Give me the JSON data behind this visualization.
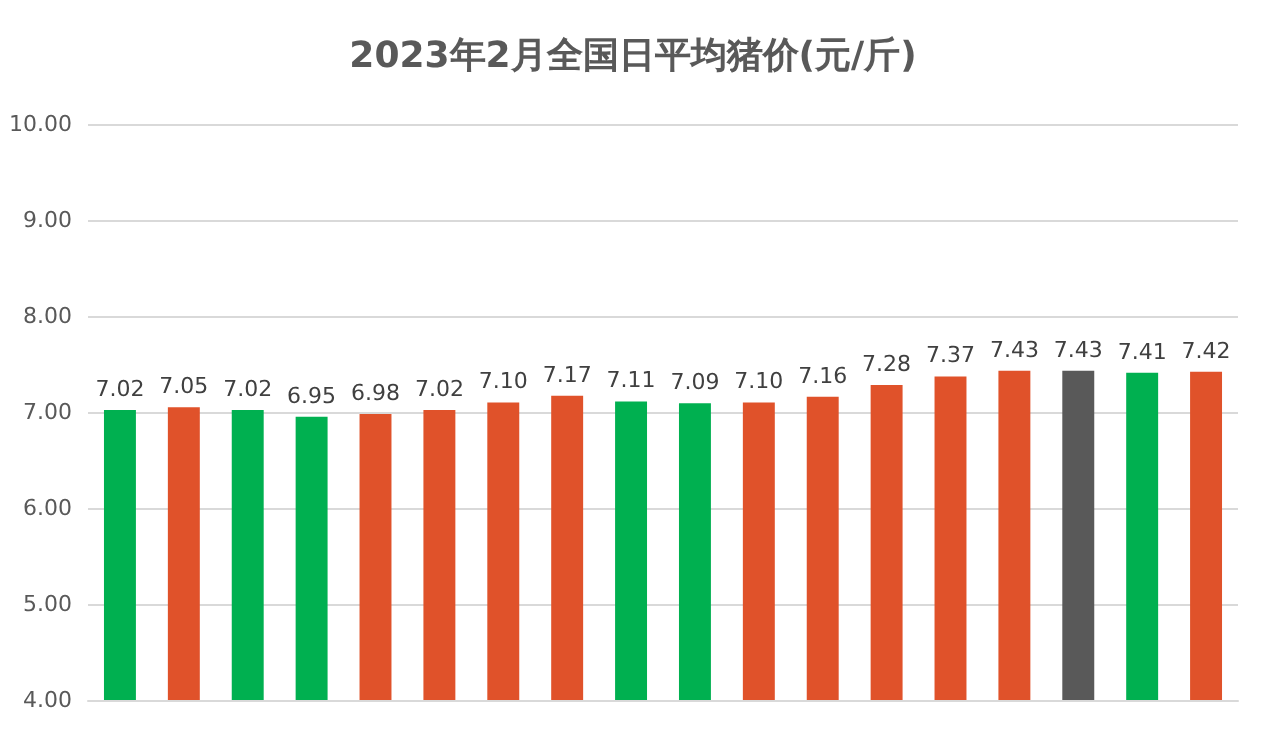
{
  "chart_data": {
    "type": "bar",
    "title": "2023年2月全国日平均猪价(元/斤)",
    "categories": [
      null,
      null,
      null,
      null,
      null,
      null,
      null,
      null,
      null,
      null,
      null,
      null,
      null,
      null,
      null,
      null,
      null,
      null
    ],
    "values": [
      7.02,
      7.05,
      7.02,
      6.95,
      6.98,
      7.02,
      7.1,
      7.17,
      7.11,
      7.09,
      7.1,
      7.16,
      7.28,
      7.37,
      7.43,
      7.43,
      7.41,
      7.42
    ],
    "value_labels": [
      "7.02",
      "7.05",
      "7.02",
      "6.95",
      "6.98",
      "7.02",
      "7.10",
      "7.17",
      "7.11",
      "7.09",
      "7.10",
      "7.16",
      "7.28",
      "7.37",
      "7.43",
      "7.43",
      "7.41",
      "7.42"
    ],
    "colors": [
      "#00b050",
      "#e0522a",
      "#00b050",
      "#00b050",
      "#e0522a",
      "#e0522a",
      "#e0522a",
      "#e0522a",
      "#00b050",
      "#00b050",
      "#e0522a",
      "#e0522a",
      "#e0522a",
      "#e0522a",
      "#e0522a",
      "#595959",
      "#00b050",
      "#e0522a"
    ],
    "ylim": [
      4,
      10
    ],
    "yticks": [
      {
        "value": 4,
        "label": "4.00"
      },
      {
        "value": 5,
        "label": "5.00"
      },
      {
        "value": 6,
        "label": "6.00"
      },
      {
        "value": 7,
        "label": "7.00"
      },
      {
        "value": 8,
        "label": "8.00"
      },
      {
        "value": 9,
        "label": "9.00"
      },
      {
        "value": 10,
        "label": "10.00"
      }
    ],
    "grid": "y",
    "tick_labels": "y"
  }
}
